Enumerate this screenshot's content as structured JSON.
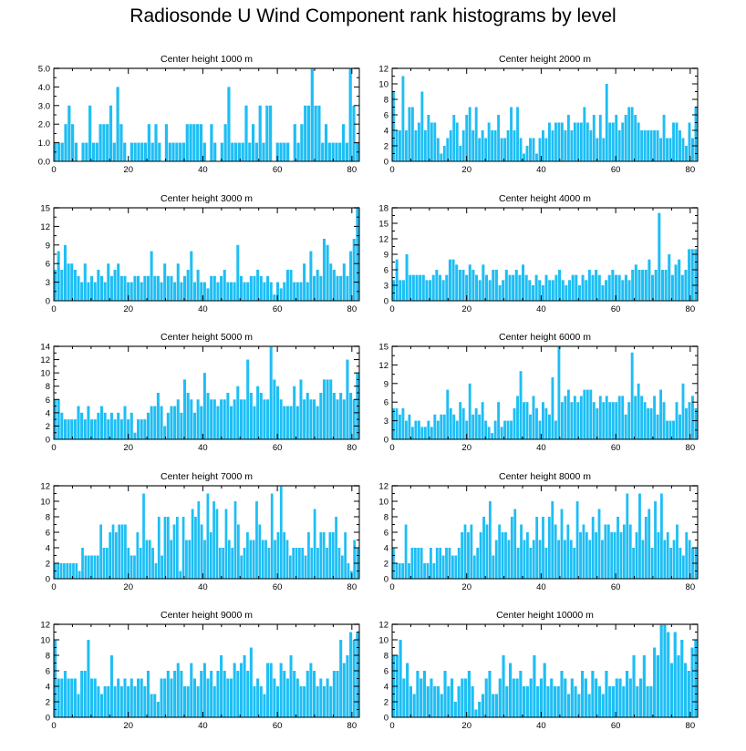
{
  "figure_title": "Radiosonde U Wind Component rank histograms by level",
  "colors": {
    "bar": "#1ebef4",
    "axis": "#000000",
    "background": "#ffffff"
  },
  "chart_data": [
    {
      "type": "bar",
      "title": "Center height 1000 m",
      "xlim": [
        0,
        82
      ],
      "ylim": [
        0,
        5
      ],
      "xticks": [
        0,
        20,
        40,
        60,
        80
      ],
      "xtick_labels": [
        "0",
        "20",
        "40",
        "60",
        "80"
      ],
      "yticks": [
        0,
        1,
        2,
        3,
        4,
        5
      ],
      "ytick_labels": [
        "0.0",
        "1.0",
        "2.0",
        "3.0",
        "4.0",
        "5.0"
      ],
      "values": [
        1,
        1,
        1,
        2,
        3,
        2,
        1,
        0,
        1,
        1,
        3,
        1,
        1,
        2,
        2,
        2,
        3,
        1,
        4,
        2,
        1,
        0,
        1,
        1,
        1,
        1,
        1,
        2,
        1,
        2,
        1,
        0,
        2,
        1,
        1,
        1,
        1,
        1,
        2,
        2,
        2,
        2,
        2,
        1,
        0,
        2,
        1,
        0,
        1,
        2,
        4,
        1,
        1,
        1,
        1,
        3,
        1,
        2,
        1,
        3,
        1,
        3,
        3,
        0,
        1,
        1,
        1,
        1,
        0,
        2,
        1,
        2,
        3,
        3,
        5,
        3,
        3,
        1,
        2,
        1,
        1,
        1,
        1,
        2,
        1,
        5,
        3,
        1
      ]
    },
    {
      "type": "bar",
      "title": "Center height 2000 m",
      "xlim": [
        0,
        82
      ],
      "ylim": [
        0,
        12
      ],
      "xticks": [
        0,
        20,
        40,
        60,
        80
      ],
      "xtick_labels": [
        "0",
        "20",
        "40",
        "60",
        "80"
      ],
      "yticks": [
        0,
        2,
        4,
        6,
        8,
        10,
        12
      ],
      "ytick_labels": [
        "0",
        "2",
        "4",
        "6",
        "8",
        "10",
        "12"
      ],
      "values": [
        9,
        4,
        4,
        11,
        4,
        7,
        7,
        4,
        5,
        9,
        4,
        6,
        5,
        5,
        3,
        1,
        2,
        3,
        4,
        6,
        5,
        2,
        4,
        6,
        7,
        4,
        7,
        3,
        4,
        3,
        5,
        4,
        4,
        6,
        3,
        3,
        4,
        7,
        4,
        7,
        3,
        1,
        2,
        3,
        3,
        1,
        3,
        4,
        3,
        5,
        4,
        5,
        5,
        5,
        4,
        6,
        4,
        5,
        5,
        5,
        7,
        5,
        4,
        6,
        3,
        6,
        3,
        10,
        5,
        5,
        6,
        4,
        5,
        6,
        7,
        7,
        6,
        5,
        4,
        4,
        4,
        4,
        4,
        4,
        3,
        6,
        3,
        3,
        5,
        5,
        4,
        3,
        2,
        5,
        3,
        7
      ]
    },
    {
      "type": "bar",
      "title": "Center height 3000 m",
      "xlim": [
        0,
        82
      ],
      "ylim": [
        0,
        15
      ],
      "xticks": [
        0,
        20,
        40,
        60,
        80
      ],
      "xtick_labels": [
        "0",
        "20",
        "40",
        "60",
        "80"
      ],
      "yticks": [
        0,
        3,
        6,
        9,
        12,
        15
      ],
      "ytick_labels": [
        "0",
        "3",
        "6",
        "9",
        "12",
        "15"
      ],
      "values": [
        5,
        8,
        5,
        9,
        6,
        6,
        5,
        4,
        3,
        6,
        3,
        4,
        3,
        5,
        4,
        3,
        6,
        4,
        5,
        6,
        4,
        4,
        3,
        3,
        4,
        4,
        3,
        4,
        4,
        8,
        4,
        4,
        3,
        6,
        4,
        4,
        3,
        6,
        3,
        4,
        5,
        8,
        3,
        5,
        3,
        3,
        2,
        4,
        4,
        3,
        4,
        5,
        3,
        3,
        3,
        9,
        4,
        3,
        3,
        4,
        4,
        5,
        4,
        3,
        4,
        3,
        1,
        3,
        2,
        3,
        5,
        5,
        3,
        3,
        3,
        6,
        3,
        8,
        4,
        5,
        4,
        10,
        9,
        6,
        5,
        4,
        4,
        6,
        4,
        8,
        10,
        15
      ]
    },
    {
      "type": "bar",
      "title": "Center height 4000 m",
      "xlim": [
        0,
        82
      ],
      "ylim": [
        0,
        18
      ],
      "xticks": [
        0,
        20,
        40,
        60,
        80
      ],
      "xtick_labels": [
        "0",
        "20",
        "40",
        "60",
        "80"
      ],
      "yticks": [
        0,
        3,
        6,
        9,
        12,
        15,
        18
      ],
      "ytick_labels": [
        "0",
        "3",
        "6",
        "9",
        "12",
        "15",
        "18"
      ],
      "values": [
        4,
        8,
        4,
        4,
        9,
        5,
        5,
        5,
        5,
        5,
        4,
        4,
        5,
        6,
        5,
        4,
        5,
        8,
        8,
        7,
        6,
        6,
        5,
        7,
        6,
        5,
        4,
        7,
        5,
        4,
        6,
        6,
        3,
        4,
        6,
        5,
        5,
        6,
        5,
        7,
        5,
        4,
        3,
        5,
        4,
        3,
        5,
        4,
        4,
        5,
        6,
        4,
        3,
        4,
        5,
        5,
        3,
        5,
        4,
        6,
        5,
        6,
        5,
        3,
        4,
        5,
        6,
        5,
        5,
        4,
        5,
        4,
        6,
        7,
        6,
        6,
        6,
        8,
        5,
        6,
        17,
        6,
        6,
        9,
        5,
        7,
        8,
        5,
        6,
        10,
        10,
        10
      ]
    },
    {
      "type": "bar",
      "title": "Center height 5000 m",
      "xlim": [
        0,
        82
      ],
      "ylim": [
        0,
        14
      ],
      "xticks": [
        0,
        20,
        40,
        60,
        80
      ],
      "xtick_labels": [
        "0",
        "20",
        "40",
        "60",
        "80"
      ],
      "yticks": [
        0,
        2,
        4,
        6,
        8,
        10,
        12,
        14
      ],
      "ytick_labels": [
        "0",
        "2",
        "4",
        "6",
        "8",
        "10",
        "12",
        "14"
      ],
      "values": [
        6,
        6,
        4,
        3,
        3,
        3,
        3,
        5,
        4,
        3,
        5,
        3,
        3,
        4,
        5,
        4,
        3,
        4,
        3,
        4,
        3,
        5,
        3,
        4,
        1,
        3,
        3,
        3,
        4,
        5,
        5,
        7,
        5,
        2,
        4,
        5,
        5,
        6,
        4,
        9,
        7,
        6,
        4,
        6,
        5,
        10,
        7,
        6,
        6,
        5,
        6,
        6,
        7,
        5,
        6,
        8,
        6,
        6,
        12,
        7,
        5,
        8,
        7,
        6,
        6,
        14,
        9,
        8,
        6,
        5,
        5,
        5,
        8,
        5,
        9,
        6,
        7,
        6,
        6,
        5,
        7,
        9,
        9,
        9,
        7,
        6,
        7,
        6,
        12,
        7,
        6,
        10
      ]
    },
    {
      "type": "bar",
      "title": "Center height 6000 m",
      "xlim": [
        0,
        82
      ],
      "ylim": [
        0,
        15
      ],
      "xticks": [
        0,
        20,
        40,
        60,
        80
      ],
      "xtick_labels": [
        "0",
        "20",
        "40",
        "60",
        "80"
      ],
      "yticks": [
        0,
        3,
        6,
        9,
        12,
        15
      ],
      "ytick_labels": [
        "0",
        "3",
        "6",
        "9",
        "12",
        "15"
      ],
      "values": [
        5,
        5,
        4,
        5,
        3,
        4,
        2,
        3,
        3,
        2,
        2,
        3,
        2,
        4,
        3,
        4,
        4,
        8,
        5,
        4,
        3,
        6,
        5,
        3,
        9,
        4,
        5,
        4,
        6,
        3,
        2,
        1,
        3,
        6,
        2,
        3,
        3,
        3,
        5,
        7,
        11,
        6,
        6,
        4,
        7,
        5,
        3,
        6,
        5,
        4,
        10,
        3,
        15,
        6,
        7,
        8,
        6,
        7,
        6,
        7,
        8,
        8,
        8,
        6,
        5,
        7,
        6,
        7,
        6,
        6,
        6,
        7,
        7,
        4,
        6,
        14,
        7,
        9,
        7,
        6,
        5,
        5,
        7,
        4,
        8,
        6,
        3,
        3,
        3,
        6,
        4,
        9,
        5,
        6,
        7,
        5
      ]
    },
    {
      "type": "bar",
      "title": "Center height 7000 m",
      "xlim": [
        0,
        82
      ],
      "ylim": [
        0,
        12
      ],
      "xticks": [
        0,
        20,
        40,
        60,
        80
      ],
      "xtick_labels": [
        "0",
        "20",
        "40",
        "60",
        "80"
      ],
      "yticks": [
        0,
        2,
        4,
        6,
        8,
        10,
        12
      ],
      "ytick_labels": [
        "0",
        "2",
        "4",
        "6",
        "8",
        "10",
        "12"
      ],
      "values": [
        2,
        2,
        2,
        2,
        2,
        2,
        2,
        2,
        1,
        4,
        3,
        3,
        3,
        3,
        3,
        7,
        4,
        4,
        6,
        7,
        6,
        7,
        7,
        7,
        4,
        3,
        3,
        6,
        4,
        11,
        5,
        5,
        4,
        2,
        8,
        3,
        8,
        8,
        5,
        7,
        8,
        1,
        8,
        5,
        5,
        9,
        8,
        10,
        7,
        5,
        11,
        6,
        10,
        9,
        4,
        4,
        9,
        5,
        4,
        10,
        7,
        3,
        4,
        6,
        5,
        5,
        10,
        7,
        5,
        5,
        4,
        11,
        5,
        6,
        12,
        6,
        5,
        3,
        4,
        4,
        4,
        4,
        3,
        6,
        4,
        9,
        4,
        6,
        6,
        4,
        6,
        6,
        8,
        4,
        3,
        6,
        2,
        1,
        5,
        4
      ]
    },
    {
      "type": "bar",
      "title": "Center height 8000 m",
      "xlim": [
        0,
        82
      ],
      "ylim": [
        0,
        12
      ],
      "xticks": [
        0,
        20,
        40,
        60,
        80
      ],
      "xtick_labels": [
        "0",
        "20",
        "40",
        "60",
        "80"
      ],
      "yticks": [
        0,
        2,
        4,
        6,
        8,
        10,
        12
      ],
      "ytick_labels": [
        "0",
        "2",
        "4",
        "6",
        "8",
        "10",
        "12"
      ],
      "values": [
        4,
        2,
        2,
        2,
        7,
        2,
        4,
        4,
        4,
        4,
        2,
        2,
        4,
        2,
        4,
        4,
        3,
        4,
        4,
        3,
        3,
        4,
        6,
        7,
        6,
        7,
        3,
        4,
        6,
        8,
        7,
        10,
        3,
        5,
        7,
        6,
        6,
        5,
        8,
        9,
        4,
        7,
        5,
        6,
        4,
        5,
        8,
        5,
        8,
        4,
        8,
        10,
        7,
        5,
        9,
        5,
        7,
        5,
        4,
        10,
        6,
        7,
        6,
        5,
        8,
        6,
        9,
        5,
        7,
        7,
        6,
        6,
        8,
        6,
        7,
        11,
        7,
        4,
        6,
        11,
        5,
        8,
        9,
        4,
        10,
        6,
        11,
        5,
        6,
        4,
        5,
        7,
        4,
        3,
        6,
        5,
        4,
        4
      ]
    },
    {
      "type": "bar",
      "title": "Center height 9000 m",
      "xlim": [
        0,
        82
      ],
      "ylim": [
        0,
        12
      ],
      "xticks": [
        0,
        20,
        40,
        60,
        80
      ],
      "xtick_labels": [
        "0",
        "20",
        "40",
        "60",
        "80"
      ],
      "yticks": [
        0,
        2,
        4,
        6,
        8,
        10,
        12
      ],
      "ytick_labels": [
        "0",
        "2",
        "4",
        "6",
        "8",
        "10",
        "12"
      ],
      "values": [
        10,
        5,
        5,
        6,
        5,
        5,
        5,
        3,
        6,
        6,
        10,
        5,
        5,
        4,
        3,
        4,
        4,
        8,
        4,
        5,
        4,
        5,
        4,
        5,
        4,
        5,
        5,
        4,
        6,
        3,
        3,
        2,
        5,
        5,
        6,
        5,
        6,
        7,
        6,
        4,
        4,
        7,
        5,
        4,
        6,
        7,
        5,
        6,
        4,
        6,
        8,
        6,
        5,
        5,
        7,
        6,
        7,
        8,
        6,
        9,
        4,
        5,
        4,
        3,
        7,
        7,
        5,
        4,
        7,
        6,
        5,
        8,
        6,
        5,
        4,
        4,
        6,
        7,
        6,
        4,
        5,
        4,
        5,
        4,
        6,
        6,
        10,
        7,
        8,
        11,
        10,
        11
      ]
    },
    {
      "type": "bar",
      "title": "Center height 10000 m",
      "xlim": [
        0,
        82
      ],
      "ylim": [
        0,
        12
      ],
      "xticks": [
        0,
        20,
        40,
        60,
        80
      ],
      "xtick_labels": [
        "0",
        "20",
        "40",
        "60",
        "80"
      ],
      "yticks": [
        0,
        2,
        4,
        6,
        8,
        10,
        12
      ],
      "ytick_labels": [
        "0",
        "2",
        "4",
        "6",
        "8",
        "10",
        "12"
      ],
      "values": [
        8,
        8,
        10,
        5,
        7,
        4,
        3,
        6,
        5,
        6,
        4,
        5,
        4,
        4,
        3,
        6,
        4,
        5,
        2,
        4,
        5,
        5,
        6,
        4,
        1,
        2,
        3,
        5,
        6,
        3,
        3,
        5,
        8,
        4,
        7,
        5,
        5,
        6,
        4,
        4,
        5,
        8,
        4,
        5,
        7,
        4,
        5,
        4,
        4,
        6,
        5,
        3,
        5,
        4,
        3,
        6,
        5,
        3,
        6,
        5,
        4,
        3,
        6,
        4,
        4,
        5,
        5,
        4,
        6,
        5,
        8,
        4,
        5,
        8,
        4,
        4,
        9,
        8,
        12,
        12,
        11,
        7,
        11,
        8,
        10,
        7,
        6,
        9,
        10
      ]
    }
  ]
}
